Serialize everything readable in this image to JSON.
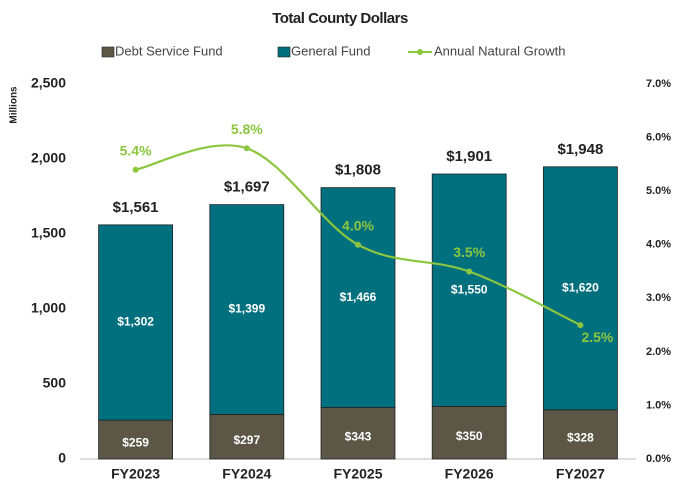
{
  "chart_data": {
    "type": "bar",
    "stacked": true,
    "title": "Total County Dollars",
    "y_label": "Millions",
    "categories": [
      "FY2023",
      "FY2024",
      "FY2025",
      "FY2026",
      "FY2027"
    ],
    "series": [
      {
        "name": "Debt Service Fund",
        "color": "#5c5647",
        "values": [
          259,
          297,
          343,
          350,
          328
        ],
        "value_labels": [
          "$259",
          "$297",
          "$343",
          "$350",
          "$328"
        ]
      },
      {
        "name": "General Fund",
        "color": "#00707f",
        "values": [
          1302,
          1399,
          1466,
          1550,
          1620
        ],
        "value_labels": [
          "$1,302",
          "$1,399",
          "$1,466",
          "$1,550",
          "$1,620"
        ]
      },
      {
        "name": "Annual Natural Growth",
        "color": "#8cc63e",
        "type": "line",
        "axis": "y2",
        "values": [
          5.4,
          5.8,
          4.0,
          3.5,
          2.5
        ],
        "value_labels": [
          "5.4%",
          "5.8%",
          "4.0%",
          "3.5%",
          "2.5%"
        ]
      }
    ],
    "totals": [
      1561,
      1697,
      1808,
      1901,
      1948
    ],
    "total_labels": [
      "$1,561",
      "$1,697",
      "$1,808",
      "$1,901",
      "$1,948"
    ],
    "ylim": [
      0,
      2500
    ],
    "yticks": [
      0,
      500,
      {
        "value": 1000,
        "label": "1,000"
      },
      {
        "value": 1500,
        "label": "1,500"
      },
      {
        "value": 2000,
        "label": "2,000"
      },
      {
        "value": 2500,
        "label": "2,500"
      }
    ],
    "y2lim": [
      0,
      7
    ],
    "y2ticks": [
      {
        "value": 0,
        "label": "0.0%"
      },
      {
        "value": 1,
        "label": "1.0%"
      },
      {
        "value": 2,
        "label": "2.0%"
      },
      {
        "value": 3,
        "label": "3.0%"
      },
      {
        "value": 4,
        "label": "4.0%"
      },
      {
        "value": 5,
        "label": "5.0%"
      },
      {
        "value": 6,
        "label": "6.0%"
      },
      {
        "value": 7,
        "label": "7.0%"
      }
    ],
    "legend": "top"
  }
}
